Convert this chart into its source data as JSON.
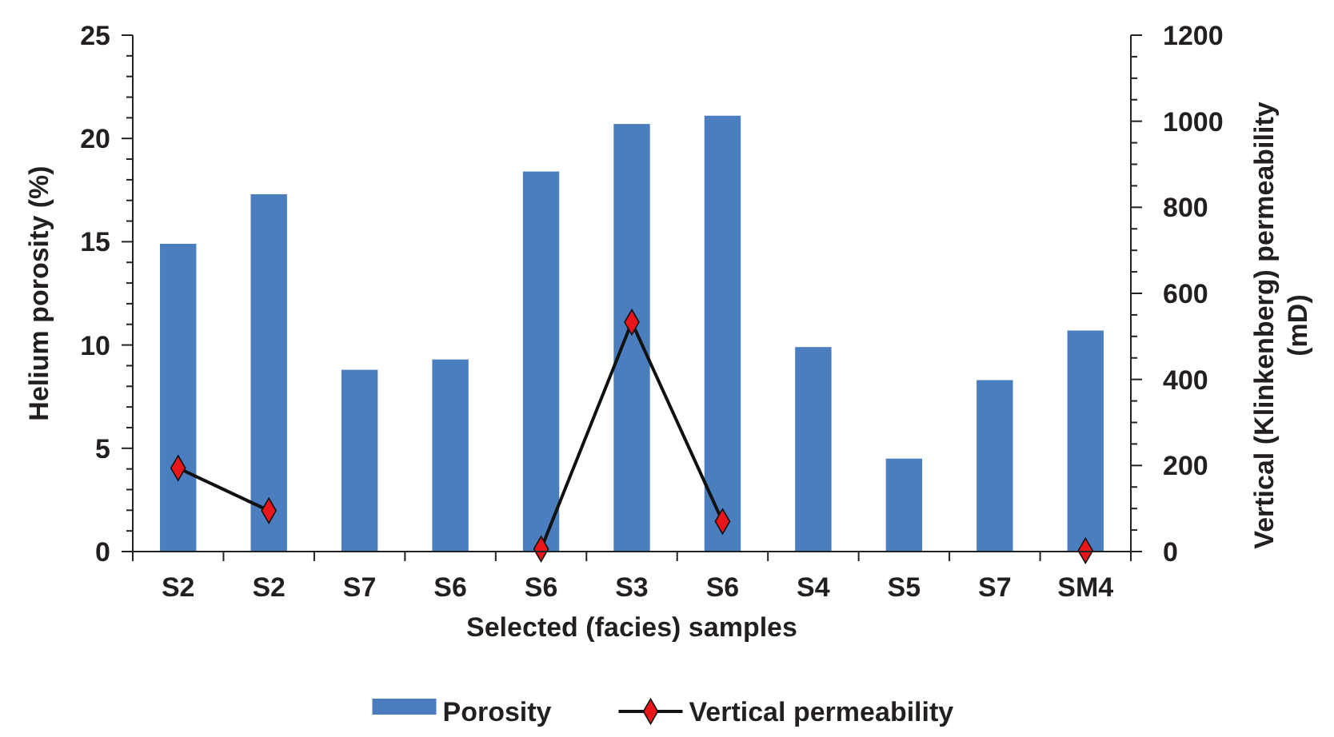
{
  "chart_data": {
    "type": "bar",
    "xlabel": "Selected (facies) samples",
    "ylabel": "Helium porosity (%)",
    "y2label": "Vertical (Klinkenberg) permeability (mD)",
    "categories": [
      "S2",
      "S2",
      "S7",
      "S6",
      "S6",
      "S3",
      "S6",
      "S4",
      "S5",
      "S7",
      "SM4"
    ],
    "series": [
      {
        "name": "Porosity",
        "color": "#4a7ebf",
        "values": [
          14.9,
          17.3,
          8.8,
          9.3,
          18.4,
          20.7,
          21.1,
          9.9,
          4.5,
          8.3,
          10.7
        ]
      },
      {
        "name": "Vertical permeability",
        "type": "line",
        "axis": "y2",
        "color": "#e8161b",
        "marker": "diamond",
        "values": [
          194,
          95,
          null,
          null,
          6,
          533,
          70,
          null,
          null,
          null,
          2
        ]
      }
    ],
    "ylim": [
      0,
      25
    ],
    "yticks": [
      0,
      {
        "value": 1,
        "label": null
      },
      {
        "value": 2,
        "label": null
      },
      {
        "value": 3,
        "label": null
      },
      {
        "value": 4,
        "label": null
      },
      5,
      {
        "value": 6,
        "label": null
      },
      {
        "value": 7,
        "label": null
      },
      {
        "value": 8,
        "label": null
      },
      {
        "value": 9,
        "label": null
      },
      10,
      {
        "value": 11,
        "label": null
      },
      {
        "value": 12,
        "label": null
      },
      {
        "value": 13,
        "label": null
      },
      {
        "value": 14,
        "label": null
      },
      15,
      {
        "value": 16,
        "label": null
      },
      {
        "value": 17,
        "label": null
      },
      {
        "value": 18,
        "label": null
      },
      {
        "value": 19,
        "label": null
      },
      20,
      {
        "value": 21,
        "label": null
      },
      {
        "value": 22,
        "label": null
      },
      {
        "value": 23,
        "label": null
      },
      {
        "value": 24,
        "label": null
      },
      25
    ],
    "y2lim": [
      0,
      1200
    ],
    "y2ticks": [
      0,
      {
        "value": 50,
        "label": null
      },
      {
        "value": 100,
        "label": null
      },
      {
        "value": 150,
        "label": null
      },
      200,
      {
        "value": 250,
        "label": null
      },
      {
        "value": 300,
        "label": null
      },
      {
        "value": 350,
        "label": null
      },
      400,
      {
        "value": 450,
        "label": null
      },
      {
        "value": 500,
        "label": null
      },
      {
        "value": 550,
        "label": null
      },
      600,
      {
        "value": 650,
        "label": null
      },
      {
        "value": 700,
        "label": null
      },
      {
        "value": 750,
        "label": null
      },
      800,
      {
        "value": 850,
        "label": null
      },
      {
        "value": 900,
        "label": null
      },
      {
        "value": 950,
        "label": null
      },
      1000,
      {
        "value": 1050,
        "label": null
      },
      {
        "value": 1100,
        "label": null
      },
      {
        "value": 1150,
        "label": null
      },
      1200
    ],
    "legend": "bottom",
    "grid": false
  }
}
